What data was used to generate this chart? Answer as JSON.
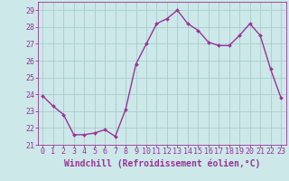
{
  "x": [
    0,
    1,
    2,
    3,
    4,
    5,
    6,
    7,
    8,
    9,
    10,
    11,
    12,
    13,
    14,
    15,
    16,
    17,
    18,
    19,
    20,
    21,
    22,
    23
  ],
  "y": [
    23.9,
    23.3,
    22.8,
    21.6,
    21.6,
    21.7,
    21.9,
    21.5,
    23.1,
    25.8,
    27.0,
    28.2,
    28.5,
    29.0,
    28.2,
    27.8,
    27.1,
    26.9,
    26.9,
    27.5,
    28.2,
    27.5,
    25.5,
    23.8
  ],
  "line_color": "#993399",
  "marker_color": "#993399",
  "bg_color": "#cce8e8",
  "grid_color": "#aacccc",
  "xlabel": "Windchill (Refroidissement éolien,°C)",
  "ylim": [
    21,
    29.5
  ],
  "xlim": [
    -0.5,
    23.5
  ],
  "yticks": [
    21,
    22,
    23,
    24,
    25,
    26,
    27,
    28,
    29
  ],
  "xticks": [
    0,
    1,
    2,
    3,
    4,
    5,
    6,
    7,
    8,
    9,
    10,
    11,
    12,
    13,
    14,
    15,
    16,
    17,
    18,
    19,
    20,
    21,
    22,
    23
  ],
  "xlabel_fontsize": 7.0,
  "tick_fontsize": 6.0,
  "line_width": 1.0,
  "marker_size": 2.0
}
